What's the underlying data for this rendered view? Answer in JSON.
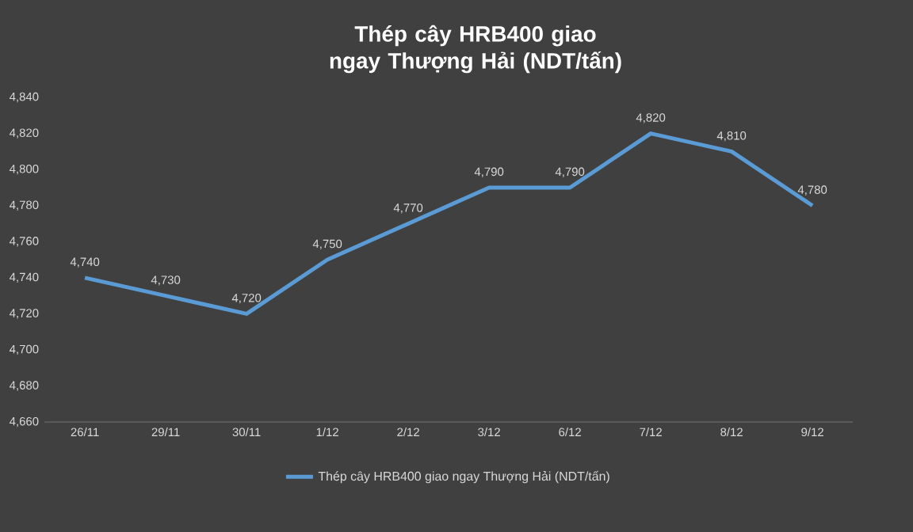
{
  "chart_data": {
    "type": "line",
    "title": "Thép cây HRB400 giao ngay Thượng Hải (NDT/tấn)",
    "categories": [
      "26/11",
      "29/11",
      "30/11",
      "1/12",
      "2/12",
      "3/12",
      "6/12",
      "7/12",
      "8/12",
      "9/12"
    ],
    "series": [
      {
        "name": "Thép cây HRB400 giao ngay Thượng Hải (NDT/tấn)",
        "color": "#5b9bd5",
        "values": [
          4740,
          4730,
          4720,
          4750,
          4770,
          4790,
          4790,
          4820,
          4810,
          4780
        ],
        "value_labels": [
          "4,740",
          "4,730",
          "4,720",
          "4,750",
          "4,770",
          "4,790",
          "4,790",
          "4,820",
          "4,810",
          "4,780"
        ]
      }
    ],
    "ylim": [
      4660,
      4840
    ],
    "yticks": [
      {
        "value": 4660,
        "label": "4,660"
      },
      {
        "value": 4680,
        "label": "4,680"
      },
      {
        "value": 4700,
        "label": "4,700"
      },
      {
        "value": 4720,
        "label": "4,720"
      },
      {
        "value": 4740,
        "label": "4,740"
      },
      {
        "value": 4760,
        "label": "4,760"
      },
      {
        "value": 4780,
        "label": "4,780"
      },
      {
        "value": 4800,
        "label": "4,800"
      },
      {
        "value": 4820,
        "label": "4,820"
      },
      {
        "value": 4840,
        "label": "4,840"
      }
    ],
    "grid": false,
    "legend": "bottom",
    "marker": "none",
    "line_style": "solid"
  }
}
